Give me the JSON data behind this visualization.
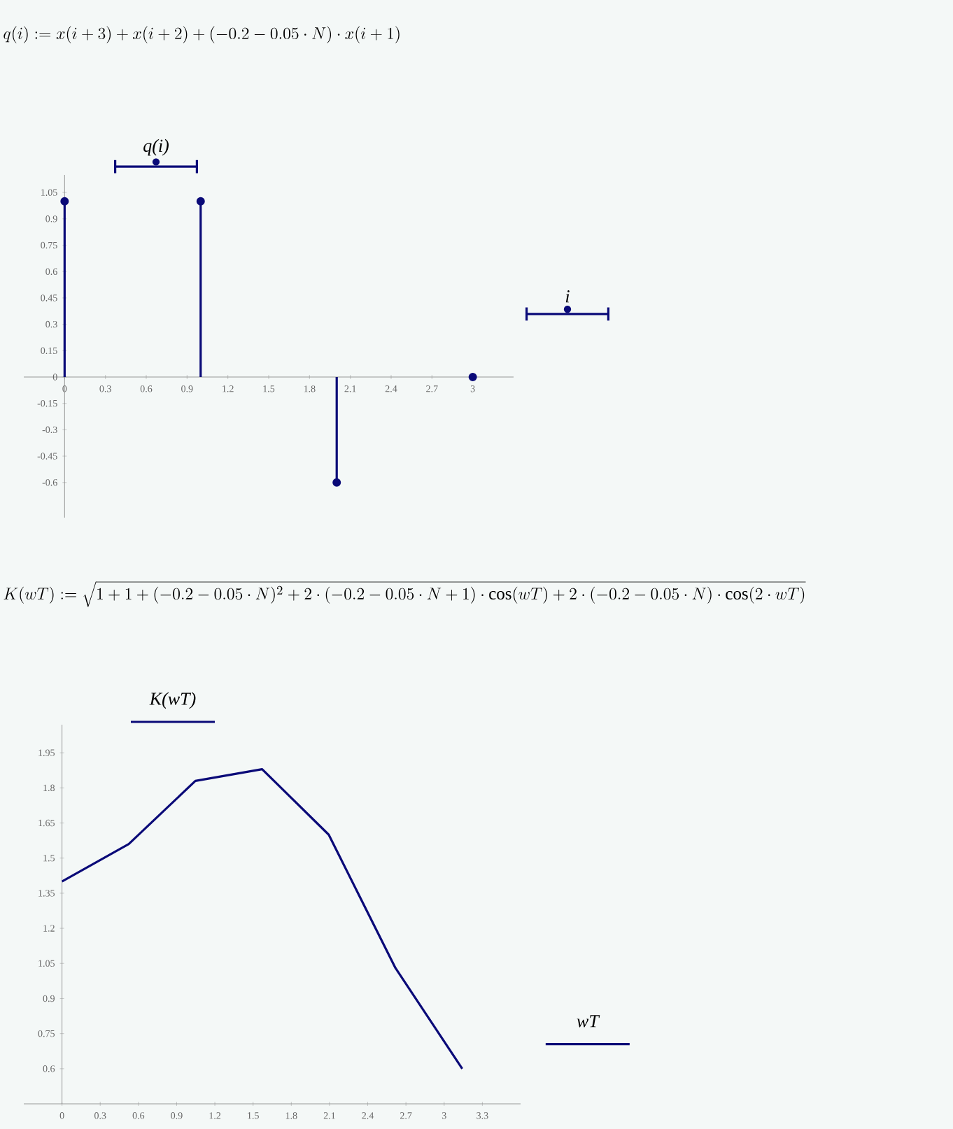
{
  "chart_data": [
    {
      "type": "lollipop",
      "title": "q(i):=x(i+3)+x(i+2)+(-0.2-0.05\\cdot N)\\cdot x(i+1)",
      "xlabel": "i",
      "ylabel": "q(i)",
      "color": "#0a0a78",
      "marker": "circle",
      "x": [
        0,
        1,
        2,
        3
      ],
      "values": [
        1,
        1,
        -0.6,
        0
      ],
      "xlim": [
        -0.3,
        3.3
      ],
      "ylim": [
        -0.8,
        1.15
      ],
      "xticks": [
        0,
        0.3,
        0.6,
        0.9,
        1.2,
        1.5,
        1.8,
        2.1,
        2.4,
        2.7,
        3
      ],
      "yticks": [
        -0.6,
        -0.45,
        -0.3,
        -0.15,
        0,
        0.15,
        0.3,
        0.45,
        0.6,
        0.75,
        0.9,
        1.05
      ]
    },
    {
      "type": "line",
      "title": "K(wT):=\\sqrt{1+1+(-0.2-0.05\\cdot N)^{2}+2\\cdot(-0.2-0.05\\cdot N+1)\\cdot\\cos(wT)+2\\cdot(-0.2-0.05\\cdot N)\\cdot\\cos(2\\cdot wT)}",
      "xlabel": "wT",
      "ylabel": "K(wT)",
      "color": "#0a0a78",
      "x": [
        0,
        0.524,
        1.047,
        1.571,
        2.094,
        2.618,
        3.142
      ],
      "values": [
        1.4,
        1.56,
        1.83,
        1.88,
        1.6,
        1.03,
        0.6
      ],
      "xlim": [
        -0.3,
        3.6
      ],
      "ylim": [
        0.45,
        2.07
      ],
      "xticks": [
        0,
        0.3,
        0.6,
        0.9,
        1.2,
        1.5,
        1.8,
        2.1,
        2.4,
        2.7,
        3,
        3.3
      ],
      "yticks": [
        0.6,
        0.75,
        0.9,
        1.05,
        1.2,
        1.35,
        1.5,
        1.65,
        1.8,
        1.95
      ]
    }
  ]
}
